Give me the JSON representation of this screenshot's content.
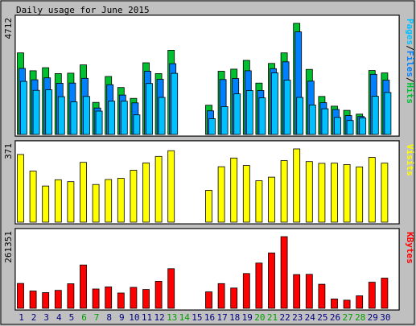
{
  "chart_data": {
    "type": "bar",
    "title": "Daily usage for June 2015",
    "categories": [
      "1",
      "2",
      "3",
      "4",
      "5",
      "6",
      "7",
      "8",
      "9",
      "10",
      "11",
      "12",
      "13",
      "14",
      "15",
      "16",
      "17",
      "18",
      "19",
      "20",
      "21",
      "22",
      "23",
      "24",
      "25",
      "26",
      "27",
      "28",
      "29",
      "30"
    ],
    "weekend_days": [
      "6",
      "7",
      "13",
      "14",
      "20",
      "21",
      "27",
      "28"
    ],
    "colors": {
      "hits": "#00c030",
      "files": "#0080ff",
      "pages": "#00c0ff",
      "visits": "#ffff00",
      "kbytes": "#ff0000",
      "weekend": "#00a000",
      "weekday": "#000080",
      "background": "#c0c0c0"
    },
    "panels": [
      {
        "id": "hits-panel",
        "max_label": "4712",
        "ymax": 4712,
        "series": [
          {
            "name": "Hits",
            "color": "#00c030",
            "values": [
              3460,
              2700,
              2830,
              2580,
              2600,
              2950,
              1360,
              2460,
              1990,
              1530,
              3040,
              2580,
              3570,
              0,
              0,
              1240,
              2680,
              2770,
              3140,
              2180,
              3010,
              3460,
              4712,
              2760,
              1610,
              1200,
              1020,
              860,
              2710,
              2610
            ]
          },
          {
            "name": "Files",
            "color": "#0080ff",
            "values": [
              2800,
              2320,
              2400,
              2170,
              2180,
              2380,
              1120,
              2110,
              1670,
              1340,
              2680,
              2340,
              3000,
              0,
              0,
              1000,
              2330,
              2370,
              2700,
              1860,
              2790,
              3080,
              4350,
              2260,
              1350,
              1060,
              800,
              760,
              2550,
              2300
            ]
          },
          {
            "name": "Pages",
            "color": "#00c0ff",
            "values": [
              2250,
              1870,
              1890,
              1600,
              1380,
              1610,
              990,
              1410,
              1410,
              830,
              2160,
              1570,
              2590,
              0,
              0,
              670,
              1180,
              1720,
              1860,
              1550,
              2610,
              2300,
              1570,
              1250,
              1090,
              720,
              590,
              700,
              1620,
              1780
            ]
          }
        ],
        "labels": [
          "Pages",
          "/",
          "Files",
          "/",
          "Hits"
        ]
      },
      {
        "id": "visits-panel",
        "max_label": "371",
        "ymax": 371,
        "series": [
          {
            "name": "Visits",
            "color": "#ffff00",
            "values": [
              343,
              259,
              183,
              215,
              205,
              303,
              191,
              216,
              222,
              263,
              300,
              333,
              362,
              0,
              0,
              161,
              281,
              325,
              287,
              210,
              228,
              312,
              371,
              307,
              298,
              299,
              292,
              280,
              328,
              299
            ]
          }
        ],
        "labels": [
          "Visits"
        ]
      },
      {
        "id": "kbytes-panel",
        "max_label": "261351",
        "ymax": 261351,
        "series": [
          {
            "name": "KBytes",
            "color": "#ff0000",
            "values": [
              90700,
              63200,
              57400,
              65400,
              89700,
              158000,
              70400,
              78200,
              55800,
              76400,
              68700,
              98800,
              144500,
              0,
              0,
              59800,
              90200,
              74000,
              127000,
              165000,
              202000,
              261351,
              123000,
              124000,
              87700,
              34100,
              29700,
              45500,
              95000,
              110000
            ]
          }
        ],
        "labels": [
          "KBytes"
        ]
      }
    ]
  }
}
